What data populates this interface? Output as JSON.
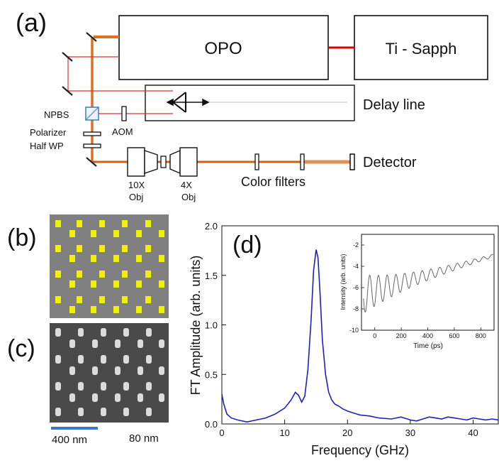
{
  "panel_a": {
    "label": "(a)",
    "boxes": {
      "opo": "OPO",
      "ti_sapph": "Ti - Sapph",
      "delay_line": "Delay line"
    },
    "components": {
      "npbs": "NPBS",
      "polarizer": "Polarizer",
      "half_wp": "Half WP",
      "aom": "AOM",
      "detector": "Detector",
      "color_filters": "Color filters",
      "obj10_line1": "10X",
      "obj10_line2": "Obj",
      "obj4_line1": "4X",
      "obj4_line2": "Obj"
    },
    "colors": {
      "pump_beam": "#e07020",
      "probe_beam": "#e02020",
      "laser_link": "#e00000"
    }
  },
  "panel_b": {
    "label": "(b)",
    "colors": {
      "background": "#808080",
      "nanostructure": "#f2f200"
    }
  },
  "panel_c": {
    "label": "(c)",
    "scale_bar_text": "400 nm",
    "size_text": "80 nm",
    "colors": {
      "scale_bar": "#3a78c8"
    }
  },
  "panel_d": {
    "label": "(d)",
    "chart_data": [
      {
        "type": "line",
        "xlabel": "Frequency (GHz)",
        "ylabel": "FT Amplitude (arb. units)",
        "xlim": [
          0,
          44
        ],
        "ylim": [
          0,
          2.0
        ],
        "xticks": [
          "0",
          "10",
          "20",
          "30",
          "40"
        ],
        "yticks": [
          "0.0",
          "0.5",
          "1.0",
          "1.5",
          "2.0"
        ],
        "grid": false,
        "color": "#2020c0",
        "series": [
          {
            "x": [
              0,
              0.3,
              0.8,
              1.5,
              2.5,
              4,
              5.5,
              7,
              8.5,
              10,
              11,
              11.7,
              12.2,
              12.7,
              13.2,
              13.7,
              14.2,
              14.6,
              15.0,
              15.3,
              15.6,
              16.0,
              16.5,
              17,
              17.5,
              18,
              18.6,
              19.3,
              20,
              21,
              22,
              23.5,
              25,
              27,
              28.5,
              30,
              31,
              32,
              33,
              34,
              35,
              36,
              37,
              38,
              39,
              40,
              41,
              42,
              43,
              44
            ],
            "y": [
              0.3,
              0.2,
              0.1,
              0.06,
              0.04,
              0.02,
              0.04,
              0.06,
              0.1,
              0.16,
              0.24,
              0.32,
              0.29,
              0.22,
              0.28,
              0.55,
              1.05,
              1.55,
              1.76,
              1.68,
              1.35,
              0.85,
              0.5,
              0.32,
              0.24,
              0.2,
              0.18,
              0.15,
              0.13,
              0.11,
              0.09,
              0.08,
              0.06,
              0.05,
              0.07,
              0.04,
              0.03,
              0.05,
              0.07,
              0.06,
              0.05,
              0.07,
              0.06,
              0.05,
              0.04,
              0.06,
              0.05,
              0.04,
              0.05,
              0.04
            ]
          }
        ]
      },
      {
        "type": "line",
        "xlabel": "Time (ps)",
        "ylabel": "Intensity (arb. units)",
        "xlim": [
          -100,
          900
        ],
        "ylim": [
          -10,
          -1
        ],
        "xticks": [
          "0",
          "200",
          "400",
          "600",
          "800"
        ],
        "yticks": [
          "-2",
          "-4",
          "-6",
          "-8",
          "-10"
        ],
        "grid": false,
        "color": "#666666",
        "oscillation_period_ps": 66
      }
    ]
  }
}
